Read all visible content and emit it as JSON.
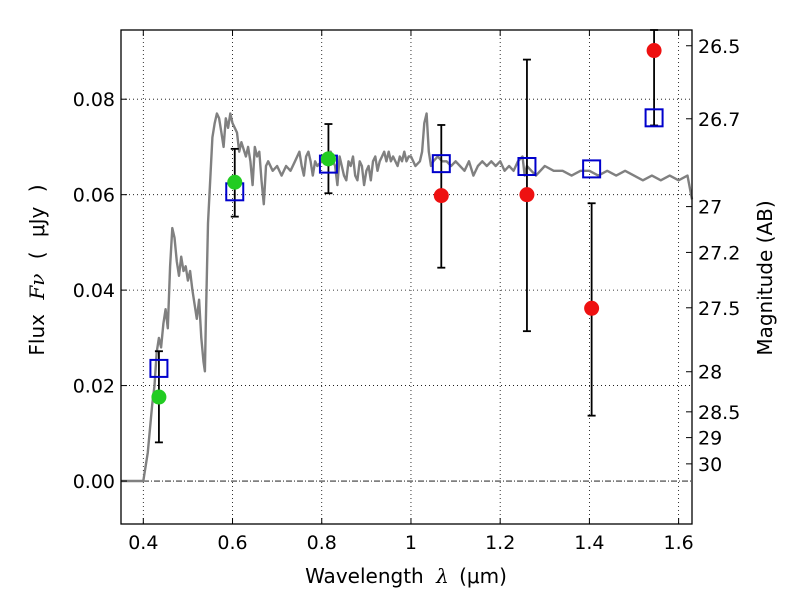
{
  "chart_data": {
    "type": "scatter",
    "xlabel": {
      "prefix": "Wavelength",
      "symbol": "λ",
      "unit": "(μm)"
    },
    "ylabel": {
      "prefix": "Flux",
      "symbol": "Fν",
      "open": "(",
      "unit": "μJy",
      "close": ")"
    },
    "y2label": "Magnitude (AB)",
    "xlim": [
      0.35,
      1.63
    ],
    "ylim": [
      -0.009,
      0.0945
    ],
    "grid": true,
    "x_ticks": [
      {
        "value": 0.4,
        "label": "0.4"
      },
      {
        "value": 0.6,
        "label": "0.6"
      },
      {
        "value": 0.8,
        "label": "0.8"
      },
      {
        "value": 1.0,
        "label": "1"
      },
      {
        "value": 1.2,
        "label": "1.2"
      },
      {
        "value": 1.4,
        "label": "1.4"
      },
      {
        "value": 1.6,
        "label": "1.6"
      }
    ],
    "y_ticks": [
      {
        "value": 0.0,
        "label": "0.00"
      },
      {
        "value": 0.02,
        "label": "0.02"
      },
      {
        "value": 0.04,
        "label": "0.04"
      },
      {
        "value": 0.06,
        "label": "0.06"
      },
      {
        "value": 0.08,
        "label": "0.08"
      }
    ],
    "mag_ticks": [
      {
        "value": 26.5,
        "flux": 0.0912,
        "label": "26.5"
      },
      {
        "value": 26.7,
        "flux": 0.0759,
        "label": "26.7"
      },
      {
        "value": 27,
        "flux": 0.0575,
        "label": "27"
      },
      {
        "value": 27.2,
        "flux": 0.0479,
        "label": "27.2"
      },
      {
        "value": 27.5,
        "flux": 0.0363,
        "label": "27.5"
      },
      {
        "value": 28,
        "flux": 0.0229,
        "label": "28"
      },
      {
        "value": 28.5,
        "flux": 0.0145,
        "label": "28.5"
      },
      {
        "value": 29,
        "flux": 0.0091,
        "label": "29"
      },
      {
        "value": 30,
        "flux": 0.0036,
        "label": "30"
      }
    ],
    "model_spectrum": {
      "color": "#808080",
      "points": [
        [
          0.35,
          0.0
        ],
        [
          0.4,
          0.0
        ],
        [
          0.41,
          0.006
        ],
        [
          0.42,
          0.016
        ],
        [
          0.425,
          0.02
        ],
        [
          0.43,
          0.027
        ],
        [
          0.435,
          0.03
        ],
        [
          0.44,
          0.028
        ],
        [
          0.445,
          0.033
        ],
        [
          0.45,
          0.036
        ],
        [
          0.455,
          0.032
        ],
        [
          0.46,
          0.045
        ],
        [
          0.465,
          0.053
        ],
        [
          0.47,
          0.051
        ],
        [
          0.475,
          0.046
        ],
        [
          0.48,
          0.043
        ],
        [
          0.485,
          0.047
        ],
        [
          0.49,
          0.044
        ],
        [
          0.495,
          0.045
        ],
        [
          0.5,
          0.042
        ],
        [
          0.505,
          0.044
        ],
        [
          0.51,
          0.04
        ],
        [
          0.515,
          0.037
        ],
        [
          0.52,
          0.034
        ],
        [
          0.525,
          0.038
        ],
        [
          0.53,
          0.03
        ],
        [
          0.535,
          0.025
        ],
        [
          0.538,
          0.023
        ],
        [
          0.54,
          0.033
        ],
        [
          0.545,
          0.054
        ],
        [
          0.55,
          0.063
        ],
        [
          0.555,
          0.072
        ],
        [
          0.56,
          0.075
        ],
        [
          0.565,
          0.077
        ],
        [
          0.57,
          0.076
        ],
        [
          0.575,
          0.073
        ],
        [
          0.58,
          0.07
        ],
        [
          0.585,
          0.076
        ],
        [
          0.59,
          0.074
        ],
        [
          0.595,
          0.077
        ],
        [
          0.6,
          0.075
        ],
        [
          0.61,
          0.073
        ],
        [
          0.615,
          0.069
        ],
        [
          0.62,
          0.071
        ],
        [
          0.63,
          0.068
        ],
        [
          0.635,
          0.07
        ],
        [
          0.64,
          0.067
        ],
        [
          0.645,
          0.062
        ],
        [
          0.65,
          0.07
        ],
        [
          0.655,
          0.068
        ],
        [
          0.66,
          0.069
        ],
        [
          0.665,
          0.063
        ],
        [
          0.67,
          0.058
        ],
        [
          0.675,
          0.066
        ],
        [
          0.68,
          0.067
        ],
        [
          0.69,
          0.065
        ],
        [
          0.7,
          0.066
        ],
        [
          0.71,
          0.064
        ],
        [
          0.72,
          0.066
        ],
        [
          0.73,
          0.065
        ],
        [
          0.74,
          0.067
        ],
        [
          0.75,
          0.069
        ],
        [
          0.755,
          0.066
        ],
        [
          0.76,
          0.064
        ],
        [
          0.765,
          0.068
        ],
        [
          0.77,
          0.069
        ],
        [
          0.775,
          0.067
        ],
        [
          0.78,
          0.064
        ],
        [
          0.785,
          0.067
        ],
        [
          0.79,
          0.066
        ],
        [
          0.8,
          0.067
        ],
        [
          0.81,
          0.068
        ],
        [
          0.815,
          0.066
        ],
        [
          0.82,
          0.069
        ],
        [
          0.825,
          0.067
        ],
        [
          0.83,
          0.066
        ],
        [
          0.835,
          0.062
        ],
        [
          0.84,
          0.068
        ],
        [
          0.845,
          0.066
        ],
        [
          0.85,
          0.064
        ],
        [
          0.855,
          0.063
        ],
        [
          0.86,
          0.067
        ],
        [
          0.865,
          0.066
        ],
        [
          0.87,
          0.068
        ],
        [
          0.875,
          0.064
        ],
        [
          0.88,
          0.063
        ],
        [
          0.885,
          0.067
        ],
        [
          0.89,
          0.066
        ],
        [
          0.895,
          0.062
        ],
        [
          0.9,
          0.065
        ],
        [
          0.905,
          0.066
        ],
        [
          0.91,
          0.063
        ],
        [
          0.915,
          0.067
        ],
        [
          0.92,
          0.068
        ],
        [
          0.925,
          0.065
        ],
        [
          0.93,
          0.067
        ],
        [
          0.935,
          0.068
        ],
        [
          0.94,
          0.069
        ],
        [
          0.945,
          0.067
        ],
        [
          0.95,
          0.069
        ],
        [
          0.955,
          0.067
        ],
        [
          0.96,
          0.068
        ],
        [
          0.97,
          0.066
        ],
        [
          0.975,
          0.068
        ],
        [
          0.98,
          0.067
        ],
        [
          0.985,
          0.069
        ],
        [
          0.99,
          0.067
        ],
        [
          0.995,
          0.068
        ],
        [
          1.0,
          0.068
        ],
        [
          1.01,
          0.066
        ],
        [
          1.02,
          0.067
        ],
        [
          1.025,
          0.069
        ],
        [
          1.03,
          0.075
        ],
        [
          1.035,
          0.077
        ],
        [
          1.04,
          0.069
        ],
        [
          1.045,
          0.066
        ],
        [
          1.05,
          0.067
        ],
        [
          1.06,
          0.068
        ],
        [
          1.07,
          0.067
        ],
        [
          1.08,
          0.067
        ],
        [
          1.09,
          0.066
        ],
        [
          1.1,
          0.067
        ],
        [
          1.11,
          0.066
        ],
        [
          1.12,
          0.065
        ],
        [
          1.13,
          0.067
        ],
        [
          1.14,
          0.064
        ],
        [
          1.15,
          0.066
        ],
        [
          1.16,
          0.067
        ],
        [
          1.17,
          0.066
        ],
        [
          1.18,
          0.067
        ],
        [
          1.19,
          0.066
        ],
        [
          1.2,
          0.067
        ],
        [
          1.21,
          0.065
        ],
        [
          1.22,
          0.066
        ],
        [
          1.23,
          0.065
        ],
        [
          1.24,
          0.067
        ],
        [
          1.25,
          0.068
        ],
        [
          1.255,
          0.064
        ],
        [
          1.26,
          0.066
        ],
        [
          1.27,
          0.065
        ],
        [
          1.28,
          0.064
        ],
        [
          1.3,
          0.066
        ],
        [
          1.32,
          0.065
        ],
        [
          1.34,
          0.065
        ],
        [
          1.36,
          0.064
        ],
        [
          1.38,
          0.065
        ],
        [
          1.4,
          0.065
        ],
        [
          1.42,
          0.064
        ],
        [
          1.44,
          0.065
        ],
        [
          1.46,
          0.064
        ],
        [
          1.48,
          0.065
        ],
        [
          1.5,
          0.064
        ],
        [
          1.52,
          0.063
        ],
        [
          1.54,
          0.064
        ],
        [
          1.56,
          0.063
        ],
        [
          1.58,
          0.064
        ],
        [
          1.6,
          0.063
        ],
        [
          1.62,
          0.064
        ],
        [
          1.63,
          0.059
        ]
      ]
    },
    "series": [
      {
        "marker": "open-square",
        "color": "#0000cc",
        "points": [
          {
            "x": 0.435,
            "y": 0.0236
          },
          {
            "x": 0.605,
            "y": 0.0606
          },
          {
            "x": 0.815,
            "y": 0.0664
          },
          {
            "x": 1.068,
            "y": 0.0665
          },
          {
            "x": 1.26,
            "y": 0.0659
          },
          {
            "x": 1.405,
            "y": 0.0654
          },
          {
            "x": 1.545,
            "y": 0.0761
          }
        ]
      },
      {
        "marker": "filled-circle",
        "color": "#22cc22",
        "points": [
          {
            "x": 0.435,
            "y": 0.0176
          },
          {
            "x": 0.605,
            "y": 0.0626
          },
          {
            "x": 0.815,
            "y": 0.0675
          }
        ]
      },
      {
        "marker": "filled-circle",
        "color": "#ee1111",
        "points": [
          {
            "x": 1.068,
            "y": 0.0598
          },
          {
            "x": 1.26,
            "y": 0.06
          },
          {
            "x": 1.405,
            "y": 0.0362
          },
          {
            "x": 1.545,
            "y": 0.0902
          }
        ]
      }
    ],
    "error_bars": [
      {
        "x": 0.435,
        "low": 0.0081,
        "high": 0.0272
      },
      {
        "x": 0.605,
        "low": 0.0554,
        "high": 0.0696
      },
      {
        "x": 0.815,
        "low": 0.0603,
        "high": 0.0748
      },
      {
        "x": 1.068,
        "low": 0.0447,
        "high": 0.0746
      },
      {
        "x": 1.26,
        "low": 0.0314,
        "high": 0.0883
      },
      {
        "x": 1.405,
        "low": 0.0137,
        "high": 0.0582
      },
      {
        "x": 1.545,
        "low": 0.0745,
        "high": 0.0945
      }
    ],
    "colors": {
      "axis": "#000000",
      "grid": "#000000",
      "zero_line": "#000000",
      "errorbar": "#000000"
    }
  }
}
